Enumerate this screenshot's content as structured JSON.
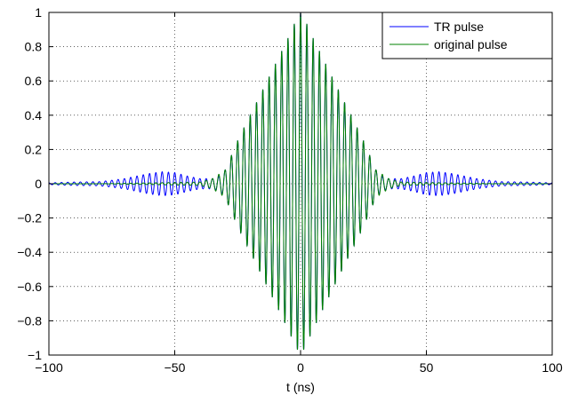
{
  "chart_data": {
    "type": "line",
    "title": "",
    "xlabel": "t (ns)",
    "ylabel": "",
    "xlim": [
      -100,
      100
    ],
    "ylim": [
      -1,
      1
    ],
    "grid": true,
    "legend_position": "top-right",
    "x_ticks": [
      "−100",
      "−50",
      "0",
      "50",
      "100"
    ],
    "y_ticks": [
      "−1",
      "−0.8",
      "−0.6",
      "−0.4",
      "−0.2",
      "0",
      "0.2",
      "0.4",
      "0.6",
      "0.8",
      "1"
    ],
    "series": [
      {
        "name": "TR pulse",
        "color": "#0000ff",
        "carrier_period_ns": 2.5,
        "envelope": [
          [
            -100,
            0.005
          ],
          [
            -90,
            0.01
          ],
          [
            -80,
            0.012
          ],
          [
            -75,
            0.02
          ],
          [
            -70,
            0.03
          ],
          [
            -60,
            0.06
          ],
          [
            -55,
            0.07
          ],
          [
            -50,
            0.065
          ],
          [
            -45,
            0.045
          ],
          [
            -40,
            0.03
          ],
          [
            -35,
            0.03
          ],
          [
            -32,
            0.045
          ],
          [
            -30,
            0.08
          ],
          [
            -25,
            0.25
          ],
          [
            -20,
            0.4
          ],
          [
            -15,
            0.55
          ],
          [
            -10,
            0.7
          ],
          [
            -5,
            0.85
          ],
          [
            -2,
            0.95
          ],
          [
            0,
            1.0
          ],
          [
            2,
            0.95
          ],
          [
            5,
            0.85
          ],
          [
            10,
            0.7
          ],
          [
            15,
            0.55
          ],
          [
            20,
            0.4
          ],
          [
            25,
            0.25
          ],
          [
            30,
            0.08
          ],
          [
            32,
            0.045
          ],
          [
            35,
            0.03
          ],
          [
            40,
            0.03
          ],
          [
            45,
            0.045
          ],
          [
            50,
            0.065
          ],
          [
            55,
            0.07
          ],
          [
            60,
            0.06
          ],
          [
            70,
            0.03
          ],
          [
            75,
            0.02
          ],
          [
            80,
            0.012
          ],
          [
            90,
            0.01
          ],
          [
            100,
            0.005
          ]
        ]
      },
      {
        "name": "original pulse",
        "color": "#008000",
        "carrier_period_ns": 2.5,
        "envelope": [
          [
            -100,
            0.0
          ],
          [
            -80,
            0.0
          ],
          [
            -60,
            0.005
          ],
          [
            -40,
            0.01
          ],
          [
            -35,
            0.03
          ],
          [
            -30,
            0.08
          ],
          [
            -25,
            0.25
          ],
          [
            -20,
            0.4
          ],
          [
            -15,
            0.55
          ],
          [
            -10,
            0.7
          ],
          [
            -5,
            0.85
          ],
          [
            -2,
            0.95
          ],
          [
            0,
            1.0
          ],
          [
            2,
            0.95
          ],
          [
            5,
            0.85
          ],
          [
            10,
            0.7
          ],
          [
            15,
            0.55
          ],
          [
            20,
            0.4
          ],
          [
            25,
            0.25
          ],
          [
            30,
            0.08
          ],
          [
            35,
            0.03
          ],
          [
            40,
            0.01
          ],
          [
            60,
            0.005
          ],
          [
            80,
            0.0
          ],
          [
            100,
            0.0
          ]
        ]
      }
    ]
  }
}
